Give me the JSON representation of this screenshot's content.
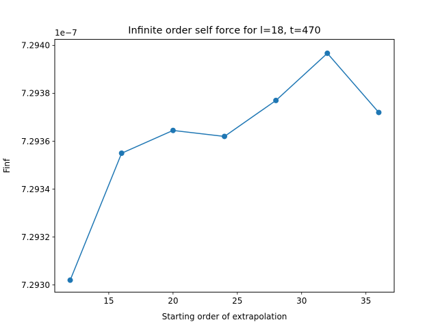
{
  "chart_data": {
    "type": "line",
    "title": "Infinite order self force for l=18, t=470",
    "xlabel": "Starting order of extrapolation",
    "ylabel": "Finf",
    "offset_label": "1e−7",
    "x": [
      12,
      16,
      20,
      24,
      28,
      32,
      36
    ],
    "series": [
      {
        "name": "",
        "values": [
          7.29302,
          7.29355,
          7.293645,
          7.29362,
          7.29377,
          7.293967,
          7.29372
        ],
        "color": "#1f77b4",
        "marker": "circle"
      }
    ],
    "xlim": [
      10.8,
      37.2
    ],
    "ylim": [
      7.29297,
      7.294025
    ],
    "x_ticks": [
      {
        "value": 15,
        "label": "15"
      },
      {
        "value": 20,
        "label": "20"
      },
      {
        "value": 25,
        "label": "25"
      },
      {
        "value": 30,
        "label": "30"
      },
      {
        "value": 35,
        "label": "35"
      }
    ],
    "y_ticks": [
      {
        "value": 7.293,
        "label": "7.2930"
      },
      {
        "value": 7.2932,
        "label": "7.2932"
      },
      {
        "value": 7.2934,
        "label": "7.2934"
      },
      {
        "value": 7.2936,
        "label": "7.2936"
      },
      {
        "value": 7.2938,
        "label": "7.2938"
      },
      {
        "value": 7.294,
        "label": "7.2940"
      }
    ],
    "grid": false,
    "legend": "none"
  }
}
